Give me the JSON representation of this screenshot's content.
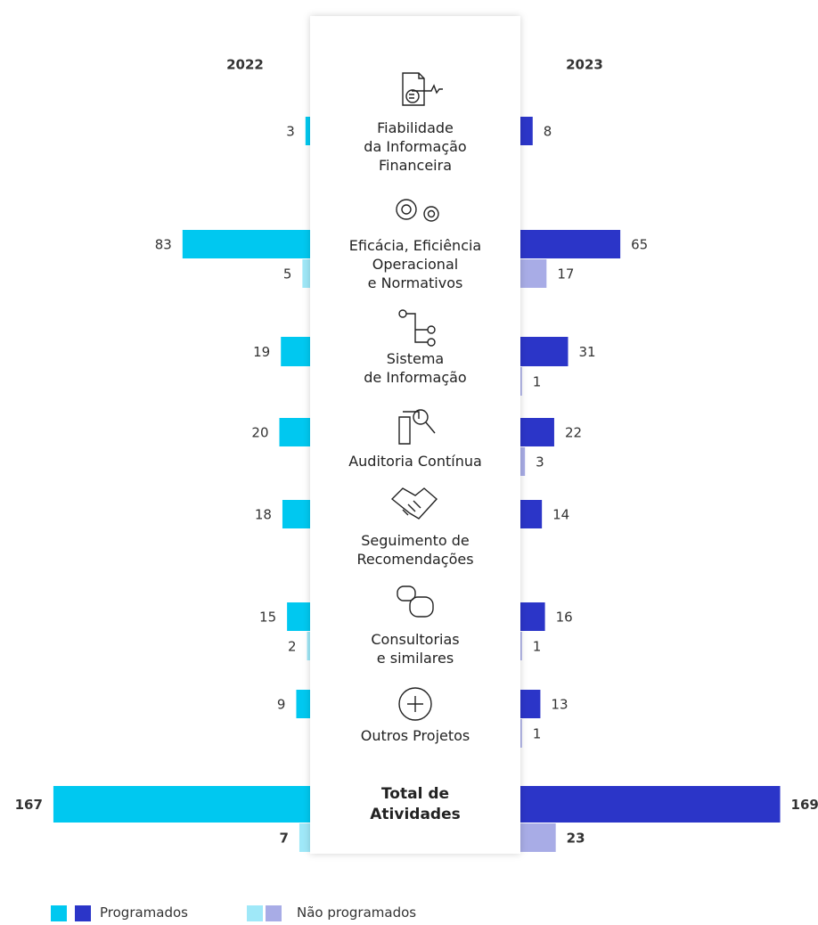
{
  "chart_data": {
    "type": "butterfly",
    "categories": [
      "Fiabilidade\nda Informação\nFinanceira",
      "Eficácia, Eficiência\nOperacional\ne Normativos",
      "Sistema\nde Informação",
      "Auditoria Contínua",
      "Seguimento de\nRecomendações",
      "Consultorias\ne similares",
      "Outros Projetos",
      "Total de\nAtividades"
    ],
    "groups": [
      {
        "name": "2022",
        "series": [
          {
            "name": "Programados",
            "color": "#00c8f0",
            "values": [
              3,
              83,
              19,
              20,
              18,
              15,
              9,
              167
            ]
          },
          {
            "name": "Não programados",
            "color": "#9fe8f8",
            "values": [
              null,
              5,
              null,
              null,
              null,
              2,
              null,
              7
            ]
          }
        ]
      },
      {
        "name": "2023",
        "series": [
          {
            "name": "Programados",
            "color": "#2b35c8",
            "values": [
              8,
              65,
              31,
              22,
              14,
              16,
              13,
              169
            ]
          },
          {
            "name": "Não programados",
            "color": "#a8ace6",
            "values": [
              null,
              17,
              1,
              3,
              null,
              1,
              1,
              23
            ]
          }
        ]
      }
    ]
  }
}
